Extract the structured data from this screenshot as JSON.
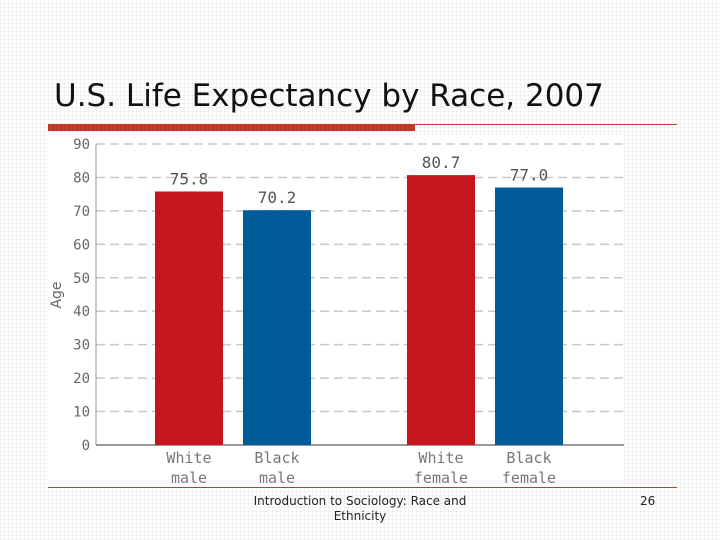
{
  "slide": {
    "title": "U.S. Life Expectancy by Race, 2007",
    "footer": "Introduction to Sociology: Race and Ethnicity",
    "page_number": "26"
  },
  "colors": {
    "accent": "#c0392b",
    "white_series": "#c4161c",
    "black_series": "#005b9a"
  },
  "chart_data": {
    "type": "bar",
    "title": "",
    "xlabel": "",
    "ylabel": "Age",
    "ylim": [
      0,
      90
    ],
    "yticks": [
      0,
      10,
      20,
      30,
      40,
      50,
      60,
      70,
      80,
      90
    ],
    "grid": true,
    "bars": [
      {
        "label": [
          "White",
          "male"
        ],
        "value": 75.8,
        "value_label": "75.8",
        "color": "#c4161c"
      },
      {
        "label": [
          "Black",
          "male"
        ],
        "value": 70.2,
        "value_label": "70.2",
        "color": "#005b9a"
      },
      {
        "label": [
          "White",
          "female"
        ],
        "value": 80.7,
        "value_label": "80.7",
        "color": "#c4161c"
      },
      {
        "label": [
          "Black",
          "female"
        ],
        "value": 77.0,
        "value_label": "77.0",
        "color": "#005b9a"
      }
    ]
  }
}
